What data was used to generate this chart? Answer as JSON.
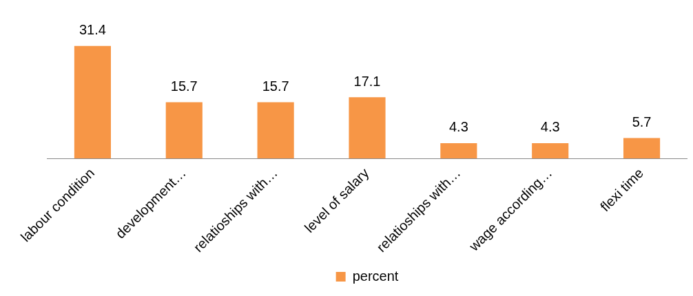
{
  "chart_data": {
    "type": "bar",
    "categories": [
      "labour condition",
      "development…",
      "relatioships with…",
      "level of salary",
      "relatioships with…",
      "wage according…",
      "flexi time"
    ],
    "series": [
      {
        "name": "percent",
        "color": "#f79646",
        "values": [
          31.4,
          15.7,
          15.7,
          17.1,
          4.3,
          4.3,
          5.7
        ]
      }
    ],
    "data_labels": true,
    "legend": "bottom",
    "grid": false
  }
}
